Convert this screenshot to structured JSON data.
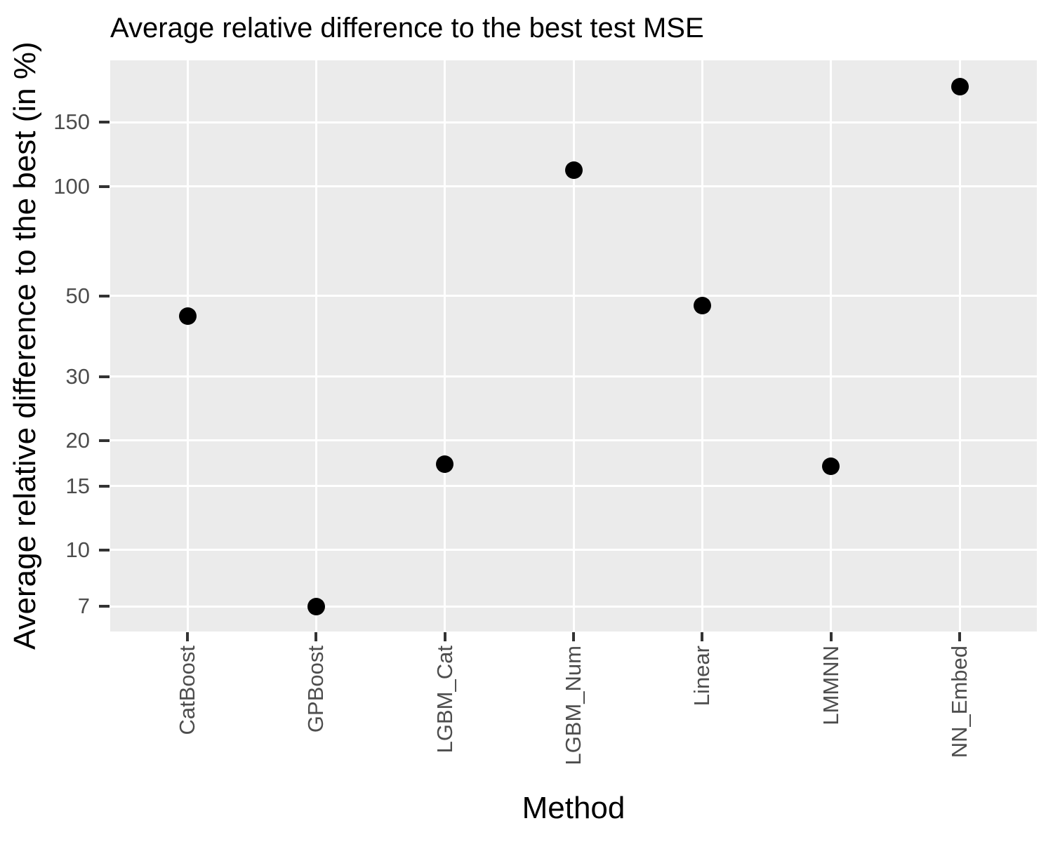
{
  "title": "Average relative difference to the best test MSE",
  "colors": {
    "background": "#FFFFFF",
    "panel_bg": "#EBEBEB",
    "gridline": "#FFFFFF",
    "point": "#000000",
    "tick_label": "#4D4D4D",
    "tick_mark": "#333333",
    "title_text": "#000000"
  },
  "chart_data": {
    "type": "scatter",
    "title": "Average relative difference to the best test MSE",
    "xlabel": "Method",
    "ylabel": "Average relative difference to the best (in %)",
    "categories": [
      "CatBoost",
      "GPBoost",
      "LGBM_Cat",
      "LGBM_Num",
      "Linear",
      "LMMNN",
      "NN_Embed"
    ],
    "values": [
      44,
      7,
      17.2,
      111,
      47,
      17,
      188
    ],
    "y_scale": "log10",
    "y_breaks": [
      150,
      100,
      50,
      30,
      20,
      15,
      10,
      7
    ],
    "ylim": [
      5.97,
      222
    ],
    "grid": "major-only, white on grey panel",
    "legend": "none",
    "point_color": "#000000",
    "panel_bg": "#EBEBEB"
  }
}
